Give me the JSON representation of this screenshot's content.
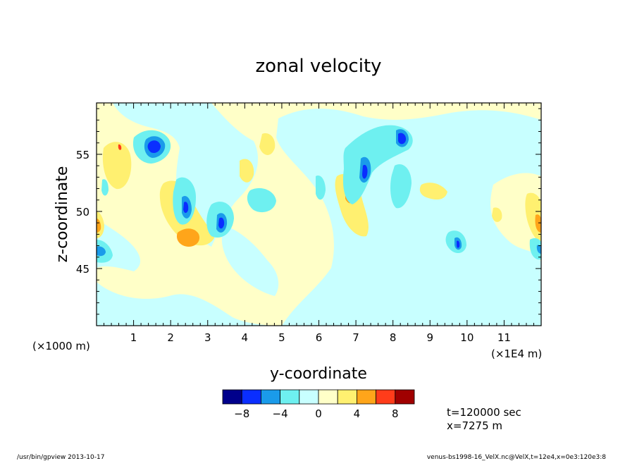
{
  "chart_data": {
    "type": "heatmap",
    "title": "zonal velocity",
    "xlabel": "y-coordinate",
    "ylabel": "z-coordinate",
    "x_unit_left": "(×1000 m)",
    "x_unit_right": "(×1E4 m)",
    "xlim": [
      0,
      12
    ],
    "ylim": [
      40,
      59.5
    ],
    "x_ticks": [
      "1",
      "2",
      "3",
      "4",
      "5",
      "6",
      "7",
      "8",
      "9",
      "10",
      "11"
    ],
    "y_ticks": [
      "45",
      "50",
      "55"
    ],
    "colorbar": {
      "levels": [
        -10,
        -8,
        -6,
        -4,
        -2,
        0,
        2,
        4,
        6,
        8,
        10
      ],
      "tick_labels": [
        "−8",
        "−4",
        "0",
        "4",
        "8"
      ],
      "colors": [
        "#00008b",
        "#0a2eff",
        "#1a9bea",
        "#6ef0f0",
        "#c8ffff",
        "#ffffc8",
        "#fff070",
        "#ffa51a",
        "#ff3c1a",
        "#a00000"
      ]
    },
    "features": [
      {
        "y": 1.3,
        "z": 56.2,
        "value": -7
      },
      {
        "y": 2.4,
        "z": 51.3,
        "value": -7
      },
      {
        "y": 3.4,
        "z": 49.2,
        "value": -7
      },
      {
        "y": 7.0,
        "z": 53.5,
        "value": -7
      },
      {
        "y": 8.4,
        "z": 56.8,
        "value": -7
      },
      {
        "y": 9.6,
        "z": 47.3,
        "value": -7
      },
      {
        "y": 0.1,
        "z": 46.8,
        "value": -7
      },
      {
        "y": 0.5,
        "z": 56.0,
        "value": 3
      },
      {
        "y": 2.6,
        "z": 47.5,
        "value": 5
      },
      {
        "y": 2.6,
        "z": 51.0,
        "value": 3
      },
      {
        "y": 6.8,
        "z": 52.0,
        "value": 5
      },
      {
        "y": 11.9,
        "z": 49.0,
        "value": 5
      },
      {
        "y": 0.05,
        "z": 49.3,
        "value": 5
      }
    ]
  },
  "time_label": "t=120000 sec",
  "position_label": "x=7275 m",
  "footer_left": "/usr/bin/gpview  2013-10-17",
  "footer_right": "venus-bs1998-16_VelX.nc@VelX,t=12e4,x=0e3:120e3:8"
}
